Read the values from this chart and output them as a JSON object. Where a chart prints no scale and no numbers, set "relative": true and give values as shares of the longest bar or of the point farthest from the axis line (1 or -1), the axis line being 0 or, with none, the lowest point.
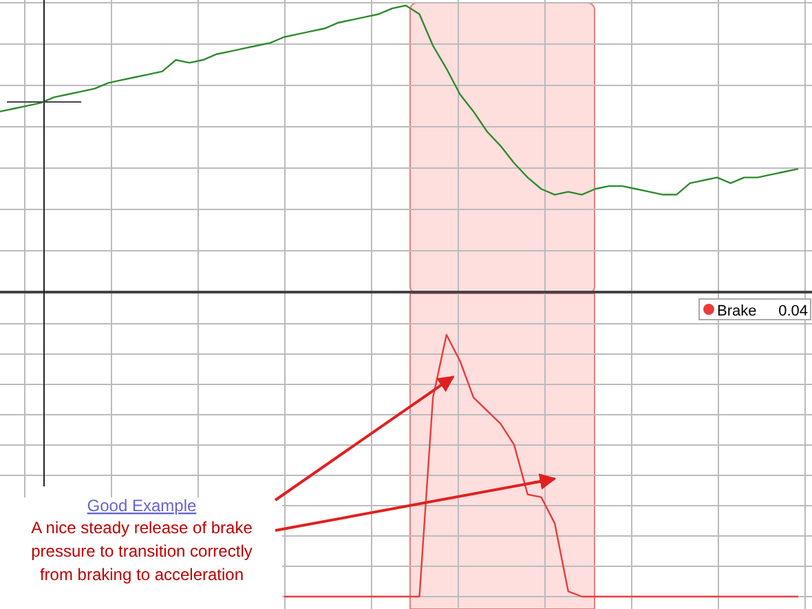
{
  "chart_data": [
    {
      "type": "line",
      "relative": true,
      "grid": true,
      "legend": false,
      "categories": [
        null,
        null,
        null,
        null,
        null,
        null,
        null,
        null,
        null,
        null,
        null,
        null,
        null,
        null,
        null,
        null,
        null,
        null,
        null,
        null,
        null,
        null,
        null,
        null,
        null,
        null,
        null,
        null,
        null,
        null,
        null,
        null,
        null,
        null,
        null,
        null,
        null,
        null,
        null,
        null,
        null,
        null,
        null,
        null,
        null,
        null,
        null,
        null,
        null,
        null,
        null,
        null,
        null,
        null,
        null,
        null,
        null,
        null,
        null,
        null
      ],
      "series": [
        {
          "color": "#2e8b2e",
          "values": [
            0.63,
            0.64,
            0.65,
            0.66,
            0.68,
            0.69,
            0.7,
            0.71,
            0.73,
            0.74,
            0.75,
            0.76,
            0.77,
            0.81,
            0.8,
            0.81,
            0.83,
            0.84,
            0.85,
            0.86,
            0.87,
            0.89,
            0.9,
            0.91,
            0.92,
            0.94,
            0.95,
            0.96,
            0.97,
            0.99,
            1.0,
            0.97,
            0.86,
            0.78,
            0.69,
            0.63,
            0.56,
            0.51,
            0.45,
            0.4,
            0.36,
            0.34,
            0.35,
            0.34,
            0.36,
            0.37,
            0.37,
            0.36,
            0.35,
            0.34,
            0.34,
            0.38,
            0.39,
            0.4,
            0.38,
            0.4,
            0.4,
            0.41,
            0.42,
            0.43
          ]
        }
      ]
    },
    {
      "type": "line",
      "relative": true,
      "grid": true,
      "legend": "top right",
      "categories": [
        null,
        null,
        null,
        null,
        null,
        null,
        null,
        null,
        null,
        null,
        null,
        null,
        null,
        null,
        null,
        null,
        null,
        null,
        null,
        null,
        null,
        null,
        null,
        null,
        null,
        null,
        null,
        null,
        null,
        null,
        null,
        null,
        null,
        null,
        null,
        null,
        null,
        null,
        null,
        null,
        null,
        null,
        null,
        null,
        null,
        null,
        null,
        null,
        null,
        null,
        null,
        null,
        null,
        null,
        null,
        null,
        null,
        null,
        null,
        null
      ],
      "series": [
        {
          "name": "Brake",
          "color": "#e83c3c",
          "values": [
            null,
            null,
            null,
            null,
            null,
            null,
            null,
            null,
            null,
            null,
            null,
            null,
            null,
            null,
            null,
            null,
            null,
            null,
            null,
            null,
            null,
            0,
            0,
            0,
            0,
            0,
            0,
            0,
            0,
            0,
            0,
            0,
            0.76,
            1.0,
            0.9,
            0.76,
            0.71,
            0.66,
            0.58,
            0.39,
            0.38,
            0.28,
            0.02,
            0,
            0,
            0,
            0,
            0,
            0,
            0,
            0,
            0,
            0,
            0,
            0,
            0,
            0,
            0,
            0,
            0
          ]
        }
      ],
      "annotations": [
        "0.04",
        "Good Example",
        "A nice steady release of brake pressure to transition correctly from braking to acceleration"
      ]
    }
  ]
}
